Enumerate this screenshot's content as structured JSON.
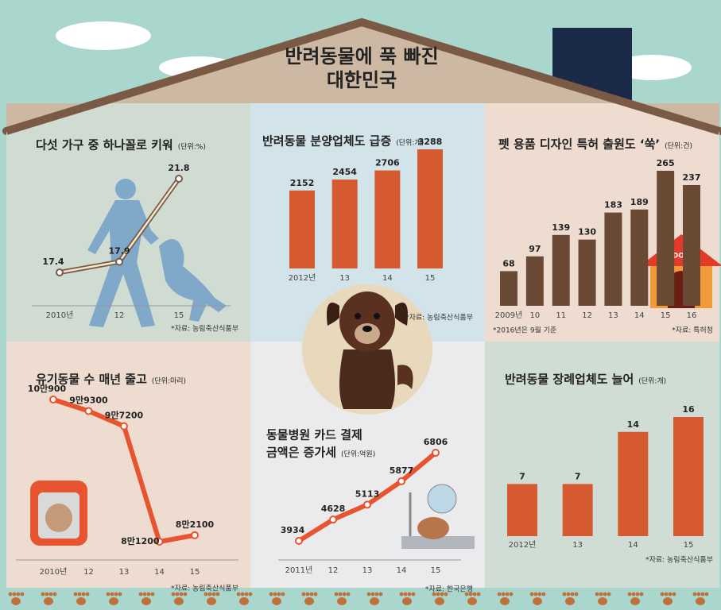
{
  "title": [
    "반려동물에 푹 빠진",
    "대한민국"
  ],
  "doghouse_label": "DOG",
  "chart_data": [
    {
      "type": "line",
      "title": "다섯 가구 중 하나꼴로 키워",
      "unit": "(단위:%)",
      "categories": [
        "2010년",
        "12",
        "15"
      ],
      "values": [
        17.4,
        17.9,
        21.8
      ],
      "color": "#f3e6d2",
      "source": "*자료: 농림축산식품부"
    },
    {
      "type": "bar",
      "title": "반려동물 분양업체도 급증",
      "unit": "(단위:개)",
      "categories": [
        "2012년",
        "13",
        "14",
        "15"
      ],
      "values": [
        2152,
        2454,
        2706,
        3288
      ],
      "color": "#d65a2f",
      "source": "*자료: 농림축산식품부"
    },
    {
      "type": "bar",
      "title": "펫 용품 디자인 특허 출원도 ‘쑥’",
      "unit": "(단위:건)",
      "categories": [
        "2009년",
        "10",
        "11",
        "12",
        "13",
        "14",
        "15",
        "16"
      ],
      "values": [
        68,
        97,
        139,
        130,
        183,
        189,
        265,
        237
      ],
      "color": "#6b4a35",
      "note": "*2016년은 9월 기준",
      "source": "*자료: 특허청"
    },
    {
      "type": "line",
      "title": "유기동물 수 매년 줄고",
      "unit": "(단위:마리)",
      "categories": [
        "2010년",
        "12",
        "13",
        "14",
        "15"
      ],
      "values": [
        100900,
        99300,
        97200,
        81200,
        82100
      ],
      "value_labels": [
        "10만900",
        "9만9300",
        "9만7200",
        "8만1200",
        "8만2100"
      ],
      "color": "#e8542f",
      "source": "*자료: 농림축산식품부"
    },
    {
      "type": "line",
      "title": [
        "동물병원 카드 결제",
        "금액은 증가세"
      ],
      "unit": "(단위:억원)",
      "categories": [
        "2011년",
        "12",
        "13",
        "14",
        "15"
      ],
      "values": [
        3934,
        4628,
        5113,
        5877,
        6806
      ],
      "color": "#e8542f",
      "source": "*자료: 한국은행"
    },
    {
      "type": "bar",
      "title": "반려동물 장례업체도 늘어",
      "unit": "(단위:개)",
      "categories": [
        "2012년",
        "13",
        "14",
        "15"
      ],
      "values": [
        7,
        7,
        14,
        16
      ],
      "color": "#d65a2f",
      "source": "*자료: 농림축산식품부"
    }
  ]
}
